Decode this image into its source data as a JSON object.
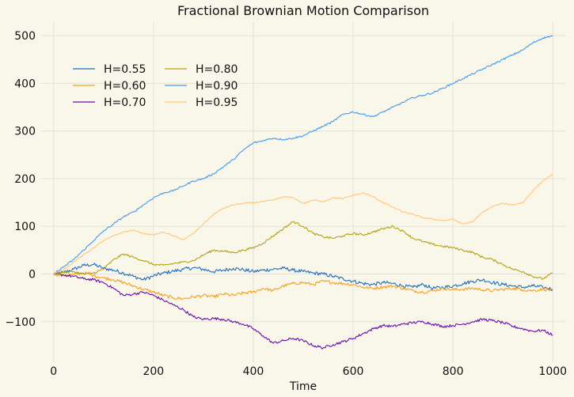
{
  "chart_data": {
    "type": "line",
    "title": "Fractional Brownian Motion Comparison",
    "xlabel": "Time",
    "ylabel": "",
    "xlim": [
      -25,
      1025
    ],
    "ylim": [
      -185,
      530
    ],
    "xticks": [
      0,
      200,
      400,
      600,
      800,
      1000
    ],
    "yticks": [
      -100,
      0,
      100,
      200,
      300,
      400,
      500
    ],
    "grid": true,
    "legend_position": "upper-left, 2 columns",
    "background_color": "#f9f6ea",
    "series": [
      {
        "name": "H=0.55",
        "color": "#1f6fc0",
        "x": [
          0,
          20,
          40,
          60,
          80,
          100,
          120,
          140,
          160,
          180,
          200,
          220,
          240,
          260,
          280,
          300,
          320,
          340,
          360,
          380,
          400,
          420,
          440,
          460,
          480,
          500,
          520,
          540,
          560,
          580,
          600,
          620,
          640,
          660,
          680,
          700,
          720,
          740,
          760,
          780,
          800,
          820,
          840,
          860,
          880,
          900,
          920,
          940,
          960,
          980,
          1000
        ],
        "y": [
          0,
          3,
          10,
          18,
          20,
          12,
          8,
          2,
          -5,
          -12,
          -4,
          2,
          6,
          10,
          13,
          10,
          5,
          8,
          12,
          9,
          5,
          8,
          10,
          12,
          8,
          5,
          2,
          0,
          -5,
          -10,
          -15,
          -20,
          -22,
          -18,
          -20,
          -25,
          -28,
          -22,
          -30,
          -28,
          -25,
          -20,
          -15,
          -12,
          -18,
          -22,
          -25,
          -28,
          -25,
          -28,
          -32
        ]
      },
      {
        "name": "H=0.60",
        "color": "#f5a022",
        "x": [
          0,
          20,
          40,
          60,
          80,
          100,
          120,
          140,
          160,
          180,
          200,
          220,
          240,
          260,
          280,
          300,
          320,
          340,
          360,
          380,
          400,
          420,
          440,
          460,
          480,
          500,
          520,
          540,
          560,
          580,
          600,
          620,
          640,
          660,
          680,
          700,
          720,
          740,
          760,
          780,
          800,
          820,
          840,
          860,
          880,
          900,
          920,
          940,
          960,
          980,
          1000
        ],
        "y": [
          0,
          -3,
          -1,
          2,
          -3,
          -8,
          -12,
          -18,
          -25,
          -32,
          -38,
          -45,
          -50,
          -52,
          -48,
          -45,
          -48,
          -42,
          -45,
          -40,
          -38,
          -30,
          -35,
          -25,
          -20,
          -18,
          -22,
          -15,
          -18,
          -20,
          -22,
          -28,
          -30,
          -27,
          -25,
          -30,
          -35,
          -38,
          -35,
          -30,
          -33,
          -32,
          -30,
          -33,
          -35,
          -32,
          -30,
          -33,
          -35,
          -32,
          -34
        ]
      },
      {
        "name": "H=0.70",
        "color": "#6a0dad",
        "x": [
          0,
          20,
          40,
          60,
          80,
          100,
          120,
          140,
          160,
          180,
          200,
          220,
          240,
          260,
          280,
          300,
          320,
          340,
          360,
          380,
          400,
          420,
          440,
          460,
          480,
          500,
          520,
          540,
          560,
          580,
          600,
          620,
          640,
          660,
          680,
          700,
          720,
          740,
          760,
          780,
          800,
          820,
          840,
          860,
          880,
          900,
          920,
          940,
          960,
          980,
          1000
        ],
        "y": [
          0,
          -2,
          -5,
          -10,
          -12,
          -18,
          -30,
          -45,
          -42,
          -38,
          -45,
          -55,
          -65,
          -75,
          -90,
          -95,
          -93,
          -95,
          -100,
          -105,
          -115,
          -130,
          -145,
          -140,
          -135,
          -140,
          -150,
          -155,
          -148,
          -142,
          -135,
          -125,
          -115,
          -108,
          -110,
          -105,
          -102,
          -100,
          -105,
          -110,
          -108,
          -105,
          -100,
          -95,
          -98,
          -102,
          -110,
          -115,
          -120,
          -118,
          -128
        ]
      },
      {
        "name": "H=0.80",
        "color": "#b5a215",
        "x": [
          0,
          20,
          40,
          60,
          80,
          100,
          120,
          140,
          160,
          180,
          200,
          220,
          240,
          260,
          280,
          300,
          320,
          340,
          360,
          380,
          400,
          420,
          440,
          460,
          480,
          500,
          520,
          540,
          560,
          580,
          600,
          620,
          640,
          660,
          680,
          700,
          720,
          740,
          760,
          780,
          800,
          820,
          840,
          860,
          880,
          900,
          920,
          940,
          960,
          980,
          1000
        ],
        "y": [
          0,
          3,
          5,
          0,
          2,
          10,
          30,
          42,
          35,
          28,
          20,
          18,
          22,
          25,
          28,
          40,
          50,
          48,
          45,
          50,
          55,
          65,
          80,
          95,
          110,
          100,
          85,
          78,
          75,
          80,
          85,
          82,
          88,
          95,
          100,
          90,
          75,
          68,
          62,
          58,
          55,
          50,
          45,
          35,
          30,
          20,
          10,
          5,
          -5,
          -10,
          2
        ]
      },
      {
        "name": "H=0.90",
        "color": "#3f9cf2",
        "x": [
          0,
          20,
          40,
          60,
          80,
          100,
          120,
          140,
          160,
          180,
          200,
          220,
          240,
          260,
          280,
          300,
          320,
          340,
          360,
          380,
          400,
          420,
          440,
          460,
          480,
          500,
          520,
          540,
          560,
          580,
          600,
          620,
          640,
          660,
          680,
          700,
          720,
          740,
          760,
          780,
          800,
          820,
          840,
          860,
          880,
          900,
          920,
          940,
          960,
          980,
          1000
        ],
        "y": [
          0,
          15,
          30,
          50,
          70,
          90,
          105,
          120,
          130,
          145,
          160,
          170,
          175,
          185,
          195,
          200,
          210,
          225,
          240,
          260,
          275,
          280,
          285,
          282,
          285,
          290,
          300,
          310,
          320,
          335,
          340,
          335,
          330,
          340,
          350,
          360,
          370,
          375,
          380,
          390,
          400,
          410,
          420,
          430,
          440,
          450,
          460,
          470,
          485,
          495,
          500
        ]
      },
      {
        "name": "H=0.95",
        "color": "#ffc778",
        "x": [
          0,
          20,
          40,
          60,
          80,
          100,
          120,
          140,
          160,
          180,
          200,
          220,
          240,
          260,
          280,
          300,
          320,
          340,
          360,
          380,
          400,
          420,
          440,
          460,
          480,
          500,
          520,
          540,
          560,
          580,
          600,
          620,
          640,
          660,
          680,
          700,
          720,
          740,
          760,
          780,
          800,
          820,
          840,
          860,
          880,
          900,
          920,
          940,
          960,
          980,
          1000
        ],
        "y": [
          0,
          10,
          25,
          40,
          55,
          70,
          80,
          88,
          92,
          85,
          82,
          88,
          80,
          72,
          85,
          105,
          125,
          138,
          145,
          148,
          150,
          152,
          155,
          162,
          160,
          148,
          155,
          152,
          160,
          158,
          165,
          170,
          162,
          150,
          140,
          130,
          125,
          118,
          115,
          112,
          115,
          105,
          110,
          130,
          142,
          148,
          145,
          150,
          175,
          195,
          210
        ]
      }
    ]
  }
}
